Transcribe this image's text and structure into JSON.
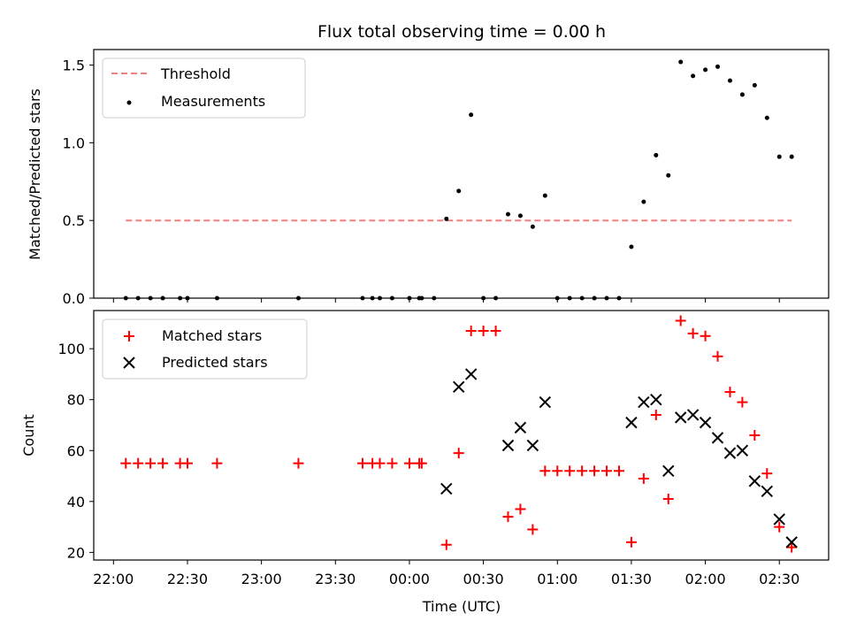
{
  "chart_data": [
    {
      "type": "scatter",
      "title": "Flux total observing time = 0.00 h",
      "xlabel": "",
      "ylabel": "Matched/Predicted stars",
      "xlim": [
        "21:52",
        "02:50"
      ],
      "ylim": [
        0,
        1.6
      ],
      "yticks": [
        "0.0",
        "0.5",
        "1.0",
        "1.5"
      ],
      "grid": false,
      "legend": "top-left",
      "threshold": {
        "name": "Threshold",
        "color": "#f08080",
        "y": 0.5,
        "x_start": "22:05",
        "x_end": "02:35"
      },
      "series": [
        {
          "name": "Measurements",
          "color": "#000000",
          "points": [
            [
              "22:05",
              0
            ],
            [
              "22:10",
              0
            ],
            [
              "22:15",
              0
            ],
            [
              "22:20",
              0
            ],
            [
              "22:27",
              0
            ],
            [
              "22:30",
              0
            ],
            [
              "22:42",
              0
            ],
            [
              "23:15",
              0
            ],
            [
              "23:41",
              0
            ],
            [
              "23:45",
              0
            ],
            [
              "23:48",
              0
            ],
            [
              "23:53",
              0
            ],
            [
              "24:00",
              0
            ],
            [
              "24:04",
              0
            ],
            [
              "24:05",
              0
            ],
            [
              "24:10",
              0
            ],
            [
              "24:15",
              0.51
            ],
            [
              "24:20",
              0.69
            ],
            [
              "24:25",
              1.18
            ],
            [
              "24:30",
              0
            ],
            [
              "24:35",
              0
            ],
            [
              "24:40",
              0.54
            ],
            [
              "24:45",
              0.53
            ],
            [
              "24:50",
              0.46
            ],
            [
              "24:55",
              0.66
            ],
            [
              "25:00",
              0
            ],
            [
              "25:05",
              0
            ],
            [
              "25:10",
              0
            ],
            [
              "25:15",
              0
            ],
            [
              "25:20",
              0
            ],
            [
              "25:25",
              0
            ],
            [
              "25:30",
              0.33
            ],
            [
              "25:35",
              0.62
            ],
            [
              "25:40",
              0.92
            ],
            [
              "25:45",
              0.79
            ],
            [
              "25:50",
              1.52
            ],
            [
              "25:55",
              1.43
            ],
            [
              "26:00",
              1.47
            ],
            [
              "26:05",
              1.49
            ],
            [
              "26:10",
              1.4
            ],
            [
              "26:15",
              1.31
            ],
            [
              "26:20",
              1.37
            ],
            [
              "26:25",
              1.16
            ],
            [
              "26:30",
              0.91
            ],
            [
              "26:35",
              0.91
            ]
          ]
        }
      ]
    },
    {
      "type": "scatter",
      "title": "",
      "xlabel": "Time (UTC)",
      "ylabel": "Count",
      "xlim": [
        "21:52",
        "02:50"
      ],
      "ylim": [
        17,
        115
      ],
      "xticks": [
        "22:00",
        "22:30",
        "23:00",
        "23:30",
        "00:00",
        "00:30",
        "01:00",
        "01:30",
        "02:00",
        "02:30"
      ],
      "yticks": [
        "20",
        "40",
        "60",
        "80",
        "100"
      ],
      "grid": false,
      "legend": "top-left",
      "series": [
        {
          "name": "Matched stars",
          "color": "#ff0000",
          "marker": "+",
          "points": [
            [
              "22:05",
              55
            ],
            [
              "22:10",
              55
            ],
            [
              "22:15",
              55
            ],
            [
              "22:20",
              55
            ],
            [
              "22:27",
              55
            ],
            [
              "22:30",
              55
            ],
            [
              "22:42",
              55
            ],
            [
              "23:15",
              55
            ],
            [
              "23:41",
              55
            ],
            [
              "23:45",
              55
            ],
            [
              "23:48",
              55
            ],
            [
              "23:53",
              55
            ],
            [
              "24:00",
              55
            ],
            [
              "24:04",
              55
            ],
            [
              "24:05",
              55
            ],
            [
              "24:15",
              23
            ],
            [
              "24:20",
              59
            ],
            [
              "24:25",
              107
            ],
            [
              "24:30",
              107
            ],
            [
              "24:35",
              107
            ],
            [
              "24:40",
              34
            ],
            [
              "24:45",
              37
            ],
            [
              "24:50",
              29
            ],
            [
              "24:55",
              52
            ],
            [
              "25:00",
              52
            ],
            [
              "25:05",
              52
            ],
            [
              "25:10",
              52
            ],
            [
              "25:15",
              52
            ],
            [
              "25:20",
              52
            ],
            [
              "25:25",
              52
            ],
            [
              "25:30",
              24
            ],
            [
              "25:35",
              49
            ],
            [
              "25:40",
              74
            ],
            [
              "25:45",
              41
            ],
            [
              "25:50",
              111
            ],
            [
              "25:55",
              106
            ],
            [
              "26:00",
              105
            ],
            [
              "26:05",
              97
            ],
            [
              "26:10",
              83
            ],
            [
              "26:15",
              79
            ],
            [
              "26:20",
              66
            ],
            [
              "26:25",
              51
            ],
            [
              "26:30",
              30
            ],
            [
              "26:35",
              22
            ]
          ]
        },
        {
          "name": "Predicted stars",
          "color": "#000000",
          "marker": "x",
          "points": [
            [
              "24:15",
              45
            ],
            [
              "24:20",
              85
            ],
            [
              "24:25",
              90
            ],
            [
              "24:40",
              62
            ],
            [
              "24:45",
              69
            ],
            [
              "24:50",
              62
            ],
            [
              "24:55",
              79
            ],
            [
              "25:30",
              71
            ],
            [
              "25:35",
              79
            ],
            [
              "25:40",
              80
            ],
            [
              "25:45",
              52
            ],
            [
              "25:50",
              73
            ],
            [
              "25:55",
              74
            ],
            [
              "26:00",
              71
            ],
            [
              "26:05",
              65
            ],
            [
              "26:10",
              59
            ],
            [
              "26:15",
              60
            ],
            [
              "26:20",
              48
            ],
            [
              "26:25",
              44
            ],
            [
              "26:30",
              33
            ],
            [
              "26:35",
              24
            ]
          ]
        }
      ]
    }
  ]
}
